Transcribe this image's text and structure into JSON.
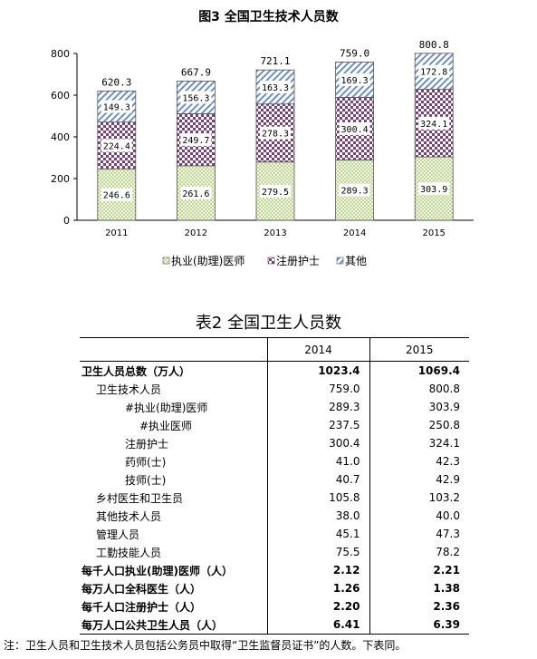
{
  "chart_data": {
    "type": "bar",
    "stacked": true,
    "title": "图3 全国卫生技术人员数",
    "categories": [
      "2011",
      "2012",
      "2013",
      "2014",
      "2015"
    ],
    "series": [
      {
        "name": "执业(助理)医师",
        "values": [
          246.6,
          261.6,
          279.5,
          289.3,
          303.9
        ],
        "pattern": "dots-green"
      },
      {
        "name": "注册护士",
        "values": [
          224.4,
          249.7,
          278.3,
          300.4,
          324.1
        ],
        "pattern": "checker-purple"
      },
      {
        "name": "其他",
        "values": [
          149.3,
          156.3,
          163.3,
          169.3,
          172.8
        ],
        "pattern": "diagonal-blue"
      }
    ],
    "totals": [
      "620.3",
      "667.9",
      "721.1",
      "759.0",
      "800.8"
    ],
    "ylim": [
      0,
      800
    ],
    "yticks": [
      "0",
      "200",
      "400",
      "600",
      "800"
    ],
    "legend_position": "bottom",
    "grid": false,
    "colors": {
      "dots": "#9cbb5b",
      "checker": "#7b3f7b",
      "diagonal": "#6b8fc4"
    }
  },
  "table": {
    "title": "表2 全国卫生人员数",
    "headers": [
      "",
      "2014",
      "2015"
    ],
    "rows": [
      {
        "label": "卫生人员总数（万人）",
        "v2014": "1023.4",
        "v2015": "1069.4",
        "indent": 0,
        "bold": true
      },
      {
        "label": "卫生技术人员",
        "v2014": "759.0",
        "v2015": "800.8",
        "indent": 1,
        "bold": false
      },
      {
        "label": "#执业(助理)医师",
        "v2014": "289.3",
        "v2015": "303.9",
        "indent": 3,
        "bold": false
      },
      {
        "label": "#执业医师",
        "v2014": "237.5",
        "v2015": "250.8",
        "indent": 4,
        "bold": false
      },
      {
        "label": "注册护士",
        "v2014": "300.4",
        "v2015": "324.1",
        "indent": 3,
        "bold": false
      },
      {
        "label": "药师(士)",
        "v2014": "41.0",
        "v2015": "42.3",
        "indent": 3,
        "bold": false
      },
      {
        "label": "技师(士)",
        "v2014": "40.7",
        "v2015": "42.9",
        "indent": 3,
        "bold": false
      },
      {
        "label": "乡村医生和卫生员",
        "v2014": "105.8",
        "v2015": "103.2",
        "indent": 1,
        "bold": false
      },
      {
        "label": "其他技术人员",
        "v2014": "38.0",
        "v2015": "40.0",
        "indent": 1,
        "bold": false
      },
      {
        "label": "管理人员",
        "v2014": "45.1",
        "v2015": "47.3",
        "indent": 1,
        "bold": false
      },
      {
        "label": "工勤技能人员",
        "v2014": "75.5",
        "v2015": "78.2",
        "indent": 1,
        "bold": false
      },
      {
        "label": "每千人口执业(助理)医师（人）",
        "v2014": "2.12",
        "v2015": "2.21",
        "indent": 0,
        "bold": true
      },
      {
        "label": "每万人口全科医生（人）",
        "v2014": "1.26",
        "v2015": "1.38",
        "indent": 0,
        "bold": true
      },
      {
        "label": "每千人口注册护士（人）",
        "v2014": "2.20",
        "v2015": "2.36",
        "indent": 0,
        "bold": true
      },
      {
        "label": "每万人口公共卫生人员（人）",
        "v2014": "6.41",
        "v2015": "6.39",
        "indent": 0,
        "bold": true
      }
    ]
  },
  "note": "注：卫生人员和卫生技术人员包括公务员中取得“卫生监督员证书”的人数。下表同。"
}
